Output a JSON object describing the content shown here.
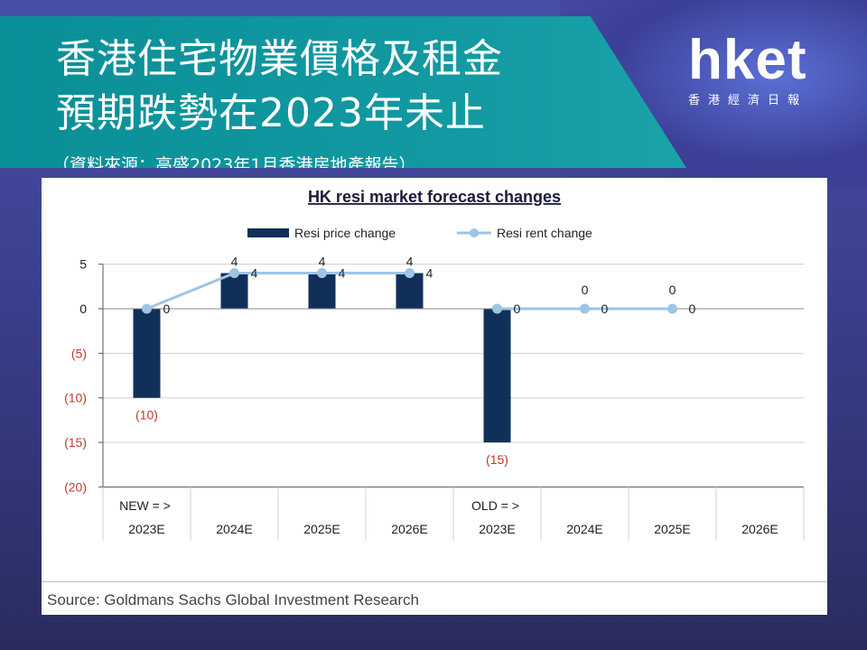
{
  "header": {
    "title_line_1": "香港住宅物業價格及租金",
    "title_line_2": "預期跌勢在2023年未止",
    "source_note": "（資料來源：高盛2023年1月香港房地產報告）"
  },
  "logo": {
    "wordmark": "hket",
    "subtitle": "香港經濟日報"
  },
  "colors": {
    "banner": "#0a8f97",
    "bar": "#10305a",
    "line": "#9cc5e6",
    "negative_tick": "#c0392b"
  },
  "chart_data": {
    "type": "bar",
    "title": "HK resi market forecast changes",
    "legend_position": "top",
    "ylim": [
      -20,
      5
    ],
    "y_ticks": [
      {
        "value": 5,
        "label": "5"
      },
      {
        "value": 0,
        "label": "0"
      },
      {
        "value": -5,
        "label": "(5)"
      },
      {
        "value": -10,
        "label": "(10)"
      },
      {
        "value": -15,
        "label": "(15)"
      },
      {
        "value": -20,
        "label": "(20)"
      }
    ],
    "categories": [
      "2023E",
      "2024E",
      "2025E",
      "2026E",
      "2023E",
      "2024E",
      "2025E",
      "2026E"
    ],
    "group_labels": [
      "NEW = >",
      "",
      "",
      "",
      "OLD = >",
      "",
      "",
      ""
    ],
    "series": [
      {
        "name": "Resi price change",
        "kind": "bar",
        "values": [
          -10,
          4,
          4,
          4,
          -15,
          0,
          0,
          null
        ],
        "labels": [
          "(10)",
          "4",
          "4",
          "4",
          "(15)",
          "0",
          "0",
          ""
        ]
      },
      {
        "name": "Resi rent change",
        "kind": "line",
        "values": [
          0,
          4,
          4,
          4,
          0,
          0,
          0,
          null
        ],
        "labels": [
          "0",
          "4",
          "4",
          "4",
          "0",
          "0",
          "0",
          ""
        ]
      }
    ],
    "grid": true,
    "source": "Source: Goldmans Sachs Global Investment Research"
  }
}
